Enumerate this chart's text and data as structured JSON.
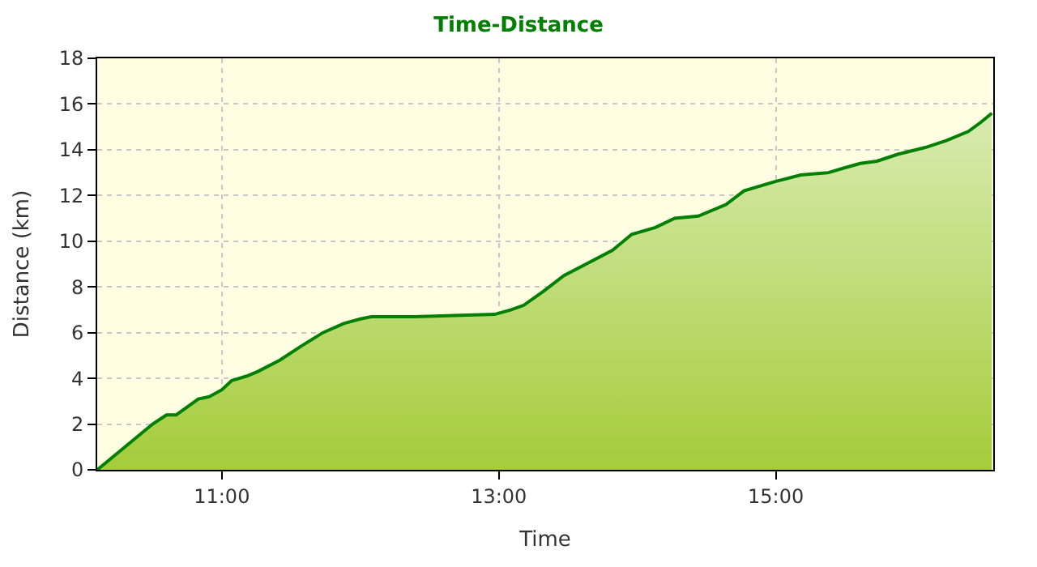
{
  "chart_data": {
    "type": "area",
    "title": "Time-Distance",
    "xlabel": "Time",
    "ylabel": "Distance (km)",
    "x": [
      10.1,
      10.5,
      10.6,
      10.67,
      10.83,
      10.91,
      11.0,
      11.07,
      11.18,
      11.26,
      11.42,
      11.57,
      11.73,
      11.88,
      12.0,
      12.08,
      12.39,
      12.97,
      13.09,
      13.18,
      13.32,
      13.47,
      13.63,
      13.82,
      13.96,
      14.13,
      14.27,
      14.44,
      14.64,
      14.77,
      14.99,
      15.18,
      15.38,
      15.49,
      15.61,
      15.73,
      15.88,
      16.08,
      16.23,
      16.39,
      16.48,
      16.56
    ],
    "series": [
      {
        "color": "#008000",
        "values": [
          0,
          2.0,
          2.4,
          2.4,
          3.1,
          3.2,
          3.5,
          3.9,
          4.1,
          4.3,
          4.8,
          5.4,
          6.0,
          6.4,
          6.6,
          6.7,
          6.7,
          6.8,
          7.0,
          7.2,
          7.8,
          8.5,
          9.0,
          9.6,
          10.3,
          10.6,
          11.0,
          11.1,
          11.6,
          12.2,
          12.6,
          12.9,
          13.0,
          13.2,
          13.4,
          13.5,
          13.8,
          14.1,
          14.4,
          14.8,
          15.2,
          15.6
        ]
      }
    ],
    "xlim": [
      10.1,
      16.57
    ],
    "xticks": [
      {
        "value": 11,
        "label": "11:00"
      },
      {
        "value": 13,
        "label": "13:00"
      },
      {
        "value": 15,
        "label": "15:00"
      }
    ],
    "ylim": [
      0,
      18
    ],
    "yticks": [
      0,
      2,
      4,
      6,
      8,
      10,
      12,
      14,
      16,
      18
    ],
    "grid": true,
    "legend": false
  }
}
